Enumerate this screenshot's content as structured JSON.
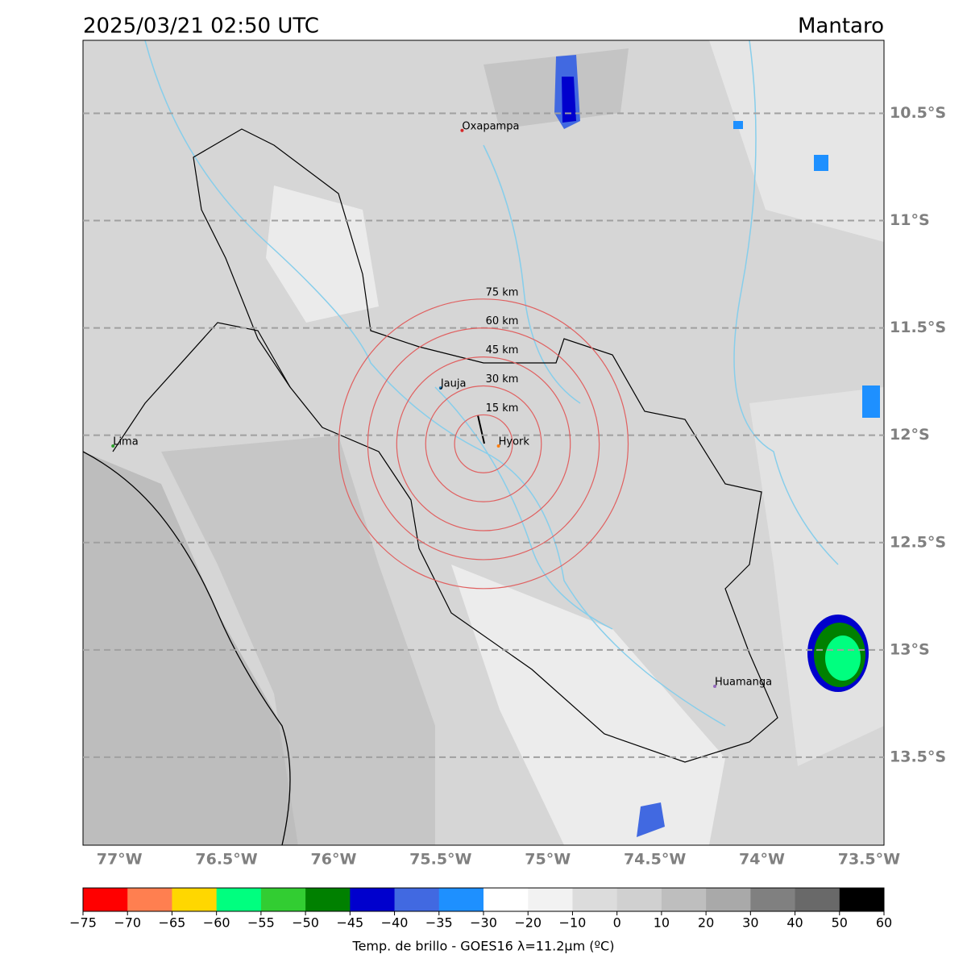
{
  "header": {
    "title": "2025/03/21 02:50 UTC",
    "region": "Mantaro"
  },
  "map": {
    "xlim": [
      -77.17,
      -73.43
    ],
    "ylim": [
      -13.91,
      -10.16
    ],
    "xticks": [
      {
        "value": -77,
        "label": "77°W"
      },
      {
        "value": -76.5,
        "label": "76.5°W"
      },
      {
        "value": -76,
        "label": "76°W"
      },
      {
        "value": -75.5,
        "label": "75.5°W"
      },
      {
        "value": -75,
        "label": "75°W"
      },
      {
        "value": -74.5,
        "label": "74.5°W"
      },
      {
        "value": -74,
        "label": "74°W"
      },
      {
        "value": -73.5,
        "label": "73.5°W"
      }
    ],
    "yticks": [
      {
        "value": -10.5,
        "label": "10.5°S"
      },
      {
        "value": -11,
        "label": "11°S"
      },
      {
        "value": -11.5,
        "label": "11.5°S"
      },
      {
        "value": -12,
        "label": "12°S"
      },
      {
        "value": -12.5,
        "label": "12.5°S"
      },
      {
        "value": -13,
        "label": "13°S"
      },
      {
        "value": -13.5,
        "label": "13.5°S"
      }
    ],
    "cities": [
      {
        "name": "Oxapampa",
        "lon": -75.4,
        "lat": -10.58,
        "color": "#d62728"
      },
      {
        "name": "Jauja",
        "lon": -75.5,
        "lat": -11.78,
        "color": "#1f77b4"
      },
      {
        "name": "Hyork",
        "lon": -75.23,
        "lat": -12.05,
        "color": "#ff7f0e"
      },
      {
        "name": "Lima",
        "lon": -77.03,
        "lat": -12.05,
        "color": "#2ca02c"
      },
      {
        "name": "Huamanga",
        "lon": -74.22,
        "lat": -13.17,
        "color": "#9467bd"
      }
    ],
    "rings": {
      "center_lon": -75.3,
      "center_lat": -12.04,
      "color": "#e06060",
      "radii": [
        {
          "value": 15,
          "label": "15 km"
        },
        {
          "value": 30,
          "label": "30 km"
        },
        {
          "value": 45,
          "label": "45 km"
        },
        {
          "value": 60,
          "label": "60 km"
        },
        {
          "value": 75,
          "label": "75 km"
        }
      ]
    }
  },
  "colorbar": {
    "label": "Temp. de brillo - GOES16 λ=11.2μm (ºC)",
    "colors": [
      "#ff0000",
      "#ff7f50",
      "#ffd700",
      "#00ff7f",
      "#32cd32",
      "#008000",
      "#0000cd",
      "#4169e1",
      "#1e90ff",
      "#ffffff",
      "#f2f2f2",
      "#dcdcdc",
      "#d0d0d0",
      "#bebebe",
      "#a9a9a9",
      "#808080",
      "#696969",
      "#000000"
    ],
    "ticks": [
      {
        "value": -75,
        "label": "−75"
      },
      {
        "value": -70,
        "label": "−70"
      },
      {
        "value": -65,
        "label": "−65"
      },
      {
        "value": -60,
        "label": "−60"
      },
      {
        "value": -55,
        "label": "−55"
      },
      {
        "value": -50,
        "label": "−50"
      },
      {
        "value": -45,
        "label": "−45"
      },
      {
        "value": -40,
        "label": "−40"
      },
      {
        "value": -35,
        "label": "−35"
      },
      {
        "value": -30,
        "label": "−30"
      },
      {
        "value": -20,
        "label": "−20"
      },
      {
        "value": -10,
        "label": "−10"
      },
      0,
      10,
      20,
      30,
      40,
      50,
      60
    ]
  }
}
